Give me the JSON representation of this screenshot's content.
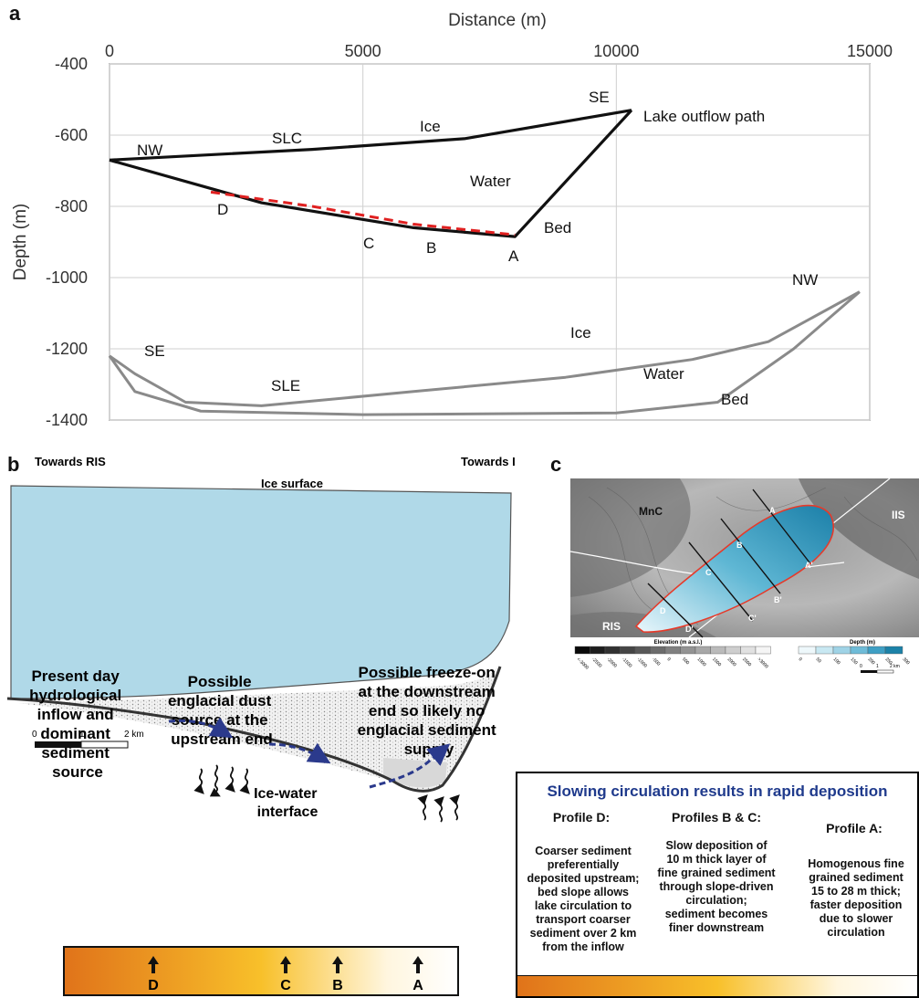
{
  "panel_a": {
    "letter": "a",
    "x_axis_title": "Distance (m)",
    "y_axis_title": "Depth (m)",
    "x_ticks": [
      "0",
      "5000",
      "10000",
      "15000"
    ],
    "y_ticks": [
      "-400",
      "-600",
      "-800",
      "-1000",
      "-1200",
      "-1400"
    ],
    "labels": {
      "slc_nw": "NW",
      "slc": "SLC",
      "slc_ice": "Ice",
      "slc_se": "SE",
      "outflow": "Lake outflow path",
      "slc_water": "Water",
      "slc_bed": "Bed",
      "d": "D",
      "c": "C",
      "b": "B",
      "a": "A",
      "sle_se": "SE",
      "sle": "SLE",
      "sle_ice": "Ice",
      "sle_water": "Water",
      "sle_bed": "Bed",
      "sle_nw": "NW"
    }
  },
  "chart_data": {
    "type": "line",
    "xlabel": "Distance (m)",
    "ylabel": "Depth (m)",
    "xlim": [
      0,
      15000
    ],
    "ylim": [
      -1400,
      -400
    ],
    "grid": true,
    "series": [
      {
        "name": "SLC",
        "x": [
          0,
          4000,
          7000,
          10300
        ],
        "y": [
          -670,
          -640,
          -610,
          -530
        ]
      },
      {
        "name": "SLC",
        "x": [
          0,
          3000,
          6000,
          8000,
          10300
        ],
        "y": [
          -670,
          -790,
          -860,
          -885,
          -530
        ]
      },
      {
        "x": [
          2000,
          4000,
          6000,
          8000
        ],
        "y": [
          -760,
          -800,
          -850,
          -880
        ]
      },
      {
        "name": "SLE",
        "x": [
          0,
          500,
          1500,
          3000,
          6000,
          9000,
          11500,
          13000,
          14800
        ],
        "y": [
          -1220,
          -1270,
          -1350,
          -1360,
          -1320,
          -1280,
          -1230,
          -1180,
          -1040
        ]
      },
      {
        "name": "SLE",
        "x": [
          0,
          500,
          1800,
          5000,
          10000,
          12000,
          13500,
          14800
        ],
        "y": [
          -1220,
          -1320,
          -1375,
          -1385,
          -1380,
          -1350,
          -1200,
          -1040
        ]
      }
    ]
  },
  "panel_b": {
    "letter": "b",
    "towards_ris": "Towards RIS",
    "towards_iis": "Towards IIS",
    "ice_surface": "Ice surface",
    "text_left": [
      "Present day",
      "hydrological",
      "inflow and",
      "dominant",
      "sediment",
      "source"
    ],
    "text_mid": [
      "Possible",
      "englacial dust",
      "source at the",
      "upstream end"
    ],
    "text_right": [
      "Possible freeze-on",
      "at the downstream",
      "end so likely no",
      "englacial sediment",
      "supply"
    ],
    "interface": [
      "Ice-water",
      "interface"
    ],
    "scale": {
      "zero": "0",
      "one": "1",
      "two": "2 km"
    },
    "bar_letters": [
      "D",
      "C",
      "B",
      "A"
    ]
  },
  "panel_c": {
    "letter": "c",
    "label_mnc": "MnC",
    "label_iis": "IIS",
    "label_ris": "RIS",
    "profile_labels": [
      "A",
      "A'",
      "B",
      "B'",
      "C",
      "C'",
      "D",
      "D'"
    ],
    "elevation_title": "Elevation (m a.s.l.)",
    "depth_title": "Depth (m)",
    "elevation_ticks": [
      "<-3000",
      "-2500",
      "-2000",
      "-1500",
      "-1000",
      "-500",
      "0",
      "500",
      "1000",
      "1500",
      "2000",
      "2500",
      ">3000"
    ],
    "depth_ticks": [
      "0",
      "50",
      "100",
      "150",
      "200",
      "250",
      "300"
    ],
    "scale": {
      "zero": "0",
      "one": "1",
      "two": "2 km"
    }
  },
  "summary": {
    "title": "Slowing circulation results in rapid deposition",
    "profile_d": {
      "head": "Profile D:",
      "lines": [
        "Coarser sediment",
        "preferentially",
        "deposited upstream;",
        "bed slope allows",
        "lake circulation to",
        "transport coarser",
        "sediment over 2 km",
        "from the inflow"
      ]
    },
    "profile_bc": {
      "head": "Profiles B & C:",
      "lines": [
        "Slow deposition of",
        "10 m thick layer of",
        "fine grained sediment",
        "through slope-driven",
        "circulation;",
        "sediment becomes",
        "finer downstream"
      ]
    },
    "profile_a": {
      "head": "Profile A:",
      "lines": [
        "Homogenous fine",
        "grained sediment",
        "15 to 28 m thick;",
        "faster deposition",
        "due to slower",
        "circulation"
      ]
    }
  },
  "colors": {
    "water": "#b0d9e8",
    "dashed_red": "#e02020",
    "arrow_navy": "#2b3a8c",
    "bar_left": "#e0731a",
    "bar_mid": "#f8c02a"
  }
}
